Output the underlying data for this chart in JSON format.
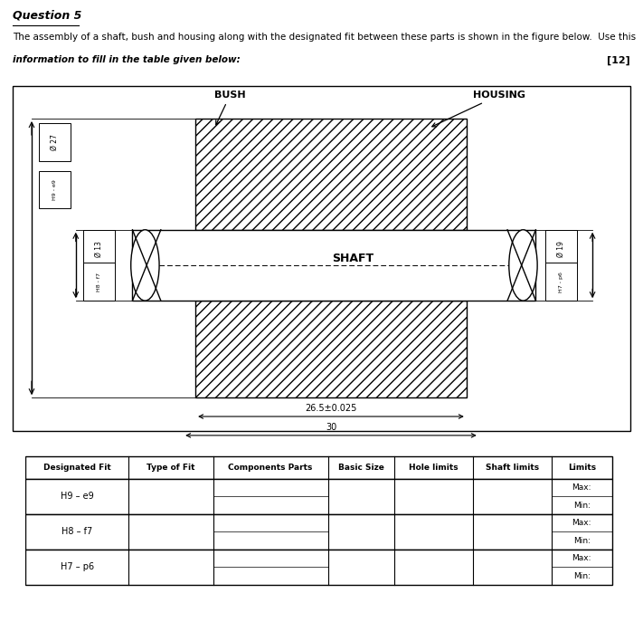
{
  "title_question": "Question 5",
  "body_line1": "The assembly of a shaft, bush and housing along with the designated fit between these parts is shown in the figure below.  Use this",
  "body_line2": "information to fill in the table given below:",
  "marks": "[12]",
  "label_bush": "BUSH",
  "label_housing": "HOUSING",
  "label_shaft": "SHAFT",
  "dim_27": "Ø 27",
  "dim_h9e9": "H9 - e9",
  "dim_13": "Ø 13",
  "dim_h8f7": "H8 - f7",
  "dim_19": "Ø 19",
  "dim_h7p6": "H7 - p6",
  "dim_265": "26.5±0.025",
  "dim_30": "30",
  "table_headers": [
    "Designated Fit",
    "Type of Fit",
    "Components Parts",
    "Basic Size",
    "Hole limits",
    "Shaft limits",
    "Limits"
  ],
  "row1_label": "H9 – e9",
  "row2_label": "H8 – f7",
  "row3_label": "H7 – p6",
  "bg_color": "#ffffff",
  "line_color": "#000000"
}
